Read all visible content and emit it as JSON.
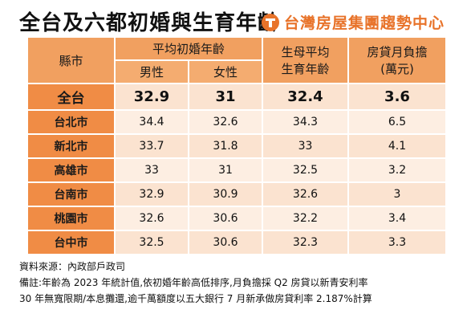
{
  "title": "全台及六都初婚與生育年齡",
  "brand": "台灣房屋集團趨勢中心",
  "header": {
    "city": "縣市",
    "avg_marriage_age": "平均初婚年齡",
    "male": "男性",
    "female": "女性",
    "mother_avg_line1": "生母平均",
    "mother_avg_line2": "生育年齡",
    "mortgage_line1": "房貸月負擔",
    "mortgage_line2": "(萬元)"
  },
  "rows": [
    {
      "city": "全台",
      "male": "32.9",
      "female": "31",
      "mother": "32.4",
      "mortgage": "3.6"
    },
    {
      "city": "台北市",
      "male": "34.4",
      "female": "32.6",
      "mother": "34.3",
      "mortgage": "6.5"
    },
    {
      "city": "新北市",
      "male": "33.7",
      "female": "31.8",
      "mother": "33",
      "mortgage": "4.1"
    },
    {
      "city": "高雄市",
      "male": "33",
      "female": "31",
      "mother": "32.5",
      "mortgage": "3.2"
    },
    {
      "city": "台南市",
      "male": "32.9",
      "female": "30.9",
      "mother": "32.6",
      "mortgage": "3"
    },
    {
      "city": "桃園市",
      "male": "32.6",
      "female": "30.6",
      "mother": "32.2",
      "mortgage": "3.4"
    },
    {
      "city": "台中市",
      "male": "32.5",
      "female": "30.6",
      "mother": "32.3",
      "mortgage": "3.3"
    }
  ],
  "notes": {
    "source": "資料來源：內政部戶政司",
    "remark_line1": "備註:年齡為 2023 年統計值,依初婚年齡高低排序,月負擔採 Q2 房貸以新青安利率",
    "remark_line2": "30 年無寬限期/本息攤還,逾千萬額度以五大銀行 7 月新承做房貸利率 2.187%計算"
  }
}
